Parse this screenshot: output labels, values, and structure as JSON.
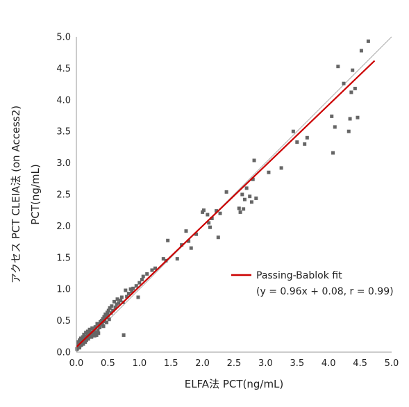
{
  "chart_data": {
    "type": "scatter",
    "xlabel": "ELFA法 PCT(ng/mL)",
    "ylabel_lines": [
      "アクセス PCT CLEIA法 (on Access2)",
      "PCT(ng/mL)"
    ],
    "xlim": [
      0.0,
      5.0
    ],
    "ylim": [
      0.0,
      5.0
    ],
    "x_ticks": [
      "0.0",
      "0.5",
      "1.0",
      "1.5",
      "2.0",
      "2.5",
      "3.0",
      "3.5",
      "4.0",
      "4.5",
      "5.0"
    ],
    "y_ticks": [
      "0.0",
      "0.5",
      "1.0",
      "1.5",
      "2.0",
      "2.5",
      "3.0",
      "3.5",
      "4.0",
      "4.5",
      "5.0"
    ],
    "grid": false,
    "legend_position": "right",
    "legend": [
      {
        "label": "Passing-Bablok fit",
        "note": "(y = 0.96x + 0.08, r = 0.99)"
      }
    ],
    "marker_color": "#666666",
    "fit_line": {
      "slope": 0.96,
      "intercept": 0.08,
      "x_range": [
        0.0,
        4.73
      ],
      "color": "#cc0000"
    },
    "identity_line": {
      "x_range": [
        0.0,
        5.0
      ],
      "color": "#aaaaaa"
    },
    "points": [
      [
        0.01,
        0.05
      ],
      [
        0.02,
        0.08
      ],
      [
        0.03,
        0.12
      ],
      [
        0.03,
        0.16
      ],
      [
        0.04,
        0.1
      ],
      [
        0.05,
        0.19
      ],
      [
        0.05,
        0.07
      ],
      [
        0.06,
        0.14
      ],
      [
        0.07,
        0.22
      ],
      [
        0.07,
        0.17
      ],
      [
        0.08,
        0.11
      ],
      [
        0.09,
        0.2
      ],
      [
        0.1,
        0.15
      ],
      [
        0.1,
        0.24
      ],
      [
        0.11,
        0.13
      ],
      [
        0.12,
        0.18
      ],
      [
        0.12,
        0.28
      ],
      [
        0.13,
        0.21
      ],
      [
        0.14,
        0.16
      ],
      [
        0.15,
        0.25
      ],
      [
        0.15,
        0.31
      ],
      [
        0.16,
        0.19
      ],
      [
        0.17,
        0.23
      ],
      [
        0.18,
        0.33
      ],
      [
        0.18,
        0.27
      ],
      [
        0.19,
        0.21
      ],
      [
        0.2,
        0.3
      ],
      [
        0.21,
        0.36
      ],
      [
        0.22,
        0.26
      ],
      [
        0.23,
        0.32
      ],
      [
        0.24,
        0.24
      ],
      [
        0.25,
        0.29
      ],
      [
        0.25,
        0.38
      ],
      [
        0.26,
        0.27
      ],
      [
        0.27,
        0.31
      ],
      [
        0.28,
        0.34
      ],
      [
        0.29,
        0.26
      ],
      [
        0.3,
        0.4
      ],
      [
        0.31,
        0.31
      ],
      [
        0.32,
        0.27
      ],
      [
        0.33,
        0.45
      ],
      [
        0.34,
        0.35
      ],
      [
        0.35,
        0.3
      ],
      [
        0.36,
        0.43
      ],
      [
        0.37,
        0.39
      ],
      [
        0.38,
        0.48
      ],
      [
        0.39,
        0.44
      ],
      [
        0.4,
        0.5
      ],
      [
        0.41,
        0.46
      ],
      [
        0.42,
        0.53
      ],
      [
        0.43,
        0.41
      ],
      [
        0.44,
        0.56
      ],
      [
        0.45,
        0.49
      ],
      [
        0.46,
        0.6
      ],
      [
        0.47,
        0.55
      ],
      [
        0.48,
        0.47
      ],
      [
        0.49,
        0.63
      ],
      [
        0.5,
        0.58
      ],
      [
        0.51,
        0.66
      ],
      [
        0.52,
        0.52
      ],
      [
        0.53,
        0.7
      ],
      [
        0.55,
        0.62
      ],
      [
        0.56,
        0.73
      ],
      [
        0.58,
        0.66
      ],
      [
        0.6,
        0.8
      ],
      [
        0.62,
        0.71
      ],
      [
        0.64,
        0.76
      ],
      [
        0.65,
        0.84
      ],
      [
        0.67,
        0.78
      ],
      [
        0.7,
        0.82
      ],
      [
        0.72,
        0.87
      ],
      [
        0.74,
        0.79
      ],
      [
        0.75,
        0.27
      ],
      [
        0.78,
        0.98
      ],
      [
        0.8,
        0.88
      ],
      [
        0.83,
        0.93
      ],
      [
        0.86,
        1.0
      ],
      [
        0.88,
        0.96
      ],
      [
        0.9,
        1.01
      ],
      [
        0.95,
        1.05
      ],
      [
        0.98,
        0.87
      ],
      [
        1.0,
        1.1
      ],
      [
        1.04,
        1.15
      ],
      [
        1.06,
        1.2
      ],
      [
        1.12,
        1.24
      ],
      [
        1.2,
        1.3
      ],
      [
        1.25,
        1.33
      ],
      [
        1.38,
        1.48
      ],
      [
        1.42,
        1.45
      ],
      [
        1.45,
        1.77
      ],
      [
        1.6,
        1.48
      ],
      [
        1.67,
        1.7
      ],
      [
        1.74,
        1.92
      ],
      [
        1.78,
        1.76
      ],
      [
        1.82,
        1.65
      ],
      [
        1.9,
        1.87
      ],
      [
        2.0,
        2.22
      ],
      [
        2.02,
        2.25
      ],
      [
        2.08,
        2.18
      ],
      [
        2.1,
        2.05
      ],
      [
        2.12,
        1.98
      ],
      [
        2.15,
        2.12
      ],
      [
        2.22,
        2.24
      ],
      [
        2.25,
        1.82
      ],
      [
        2.28,
        2.2
      ],
      [
        2.38,
        2.54
      ],
      [
        2.58,
        2.28
      ],
      [
        2.6,
        2.22
      ],
      [
        2.63,
        2.5
      ],
      [
        2.65,
        2.27
      ],
      [
        2.67,
        2.42
      ],
      [
        2.7,
        2.6
      ],
      [
        2.75,
        2.47
      ],
      [
        2.78,
        2.38
      ],
      [
        2.8,
        2.74
      ],
      [
        2.85,
        2.44
      ],
      [
        2.82,
        3.04
      ],
      [
        3.05,
        2.85
      ],
      [
        3.25,
        2.92
      ],
      [
        3.44,
        3.5
      ],
      [
        3.5,
        3.33
      ],
      [
        3.62,
        3.3
      ],
      [
        3.66,
        3.4
      ],
      [
        4.05,
        3.74
      ],
      [
        4.07,
        3.16
      ],
      [
        4.1,
        3.57
      ],
      [
        4.15,
        4.53
      ],
      [
        4.24,
        4.26
      ],
      [
        4.32,
        3.5
      ],
      [
        4.34,
        3.7
      ],
      [
        4.36,
        4.12
      ],
      [
        4.38,
        4.47
      ],
      [
        4.42,
        4.18
      ],
      [
        4.46,
        3.72
      ],
      [
        4.52,
        4.78
      ],
      [
        4.63,
        4.93
      ]
    ]
  }
}
